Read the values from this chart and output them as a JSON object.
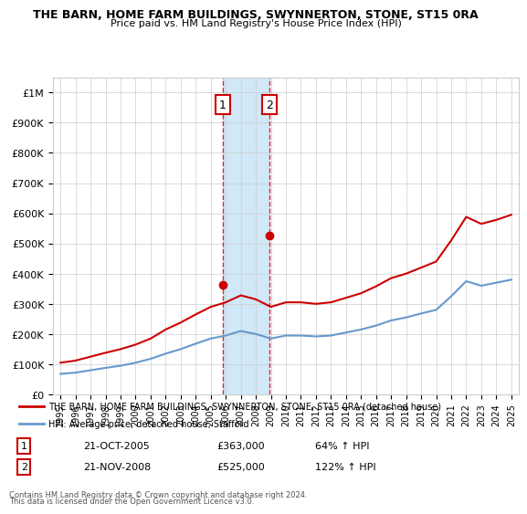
{
  "title": "THE BARN, HOME FARM BUILDINGS, SWYNNERTON, STONE, ST15 0RA",
  "subtitle": "Price paid vs. HM Land Registry's House Price Index (HPI)",
  "ylabel_ticks": [
    "£0",
    "£100K",
    "£200K",
    "£300K",
    "£400K",
    "£500K",
    "£600K",
    "£700K",
    "£800K",
    "£900K",
    "£1M"
  ],
  "ytick_values": [
    0,
    100000,
    200000,
    300000,
    400000,
    500000,
    600000,
    700000,
    800000,
    900000,
    1000000
  ],
  "xlim": [
    1994.5,
    2025.5
  ],
  "ylim": [
    0,
    1050000
  ],
  "purchase1_year": 2005.8,
  "purchase1_value": 363000,
  "purchase1_label": "1",
  "purchase1_date": "21-OCT-2005",
  "purchase1_price": "£363,000",
  "purchase1_hpi": "64% ↑ HPI",
  "purchase2_year": 2008.9,
  "purchase2_value": 525000,
  "purchase2_label": "2",
  "purchase2_date": "21-NOV-2008",
  "purchase2_price": "£525,000",
  "purchase2_hpi": "122% ↑ HPI",
  "shade_color": "#d0e8f8",
  "red_line_color": "#cc0000",
  "blue_line_color": "#6699cc",
  "marker_box_color": "#cc0000",
  "legend_label_red": "THE BARN, HOME FARM BUILDINGS, SWYNNERTON, STONE, ST15 0RA (detached house)",
  "legend_label_blue": "HPI: Average price, detached house, Stafford",
  "footer1": "Contains HM Land Registry data © Crown copyright and database right 2024.",
  "footer2": "This data is licensed under the Open Government Licence v3.0.",
  "hpi_years": [
    1995,
    1996,
    1997,
    1998,
    1999,
    2000,
    2001,
    2002,
    2003,
    2004,
    2005,
    2006,
    2007,
    2008,
    2009,
    2010,
    2011,
    2012,
    2013,
    2014,
    2015,
    2016,
    2017,
    2018,
    2019,
    2020,
    2021,
    2022,
    2023,
    2024,
    2025
  ],
  "hpi_values": [
    68000,
    72000,
    80000,
    88000,
    95000,
    105000,
    118000,
    135000,
    150000,
    168000,
    185000,
    195000,
    210000,
    200000,
    185000,
    195000,
    195000,
    192000,
    195000,
    205000,
    215000,
    228000,
    245000,
    255000,
    268000,
    280000,
    325000,
    375000,
    360000,
    370000,
    380000
  ],
  "red_years": [
    1995,
    1996,
    1997,
    1998,
    1999,
    2000,
    2001,
    2002,
    2003,
    2004,
    2005,
    2006,
    2007,
    2008,
    2009,
    2010,
    2011,
    2012,
    2013,
    2014,
    2015,
    2016,
    2017,
    2018,
    2019,
    2020,
    2021,
    2022,
    2023,
    2024,
    2025
  ],
  "red_values": [
    105000,
    112000,
    125000,
    138000,
    150000,
    165000,
    185000,
    215000,
    238000,
    265000,
    290000,
    305000,
    328000,
    315000,
    290000,
    305000,
    305000,
    300000,
    305000,
    320000,
    335000,
    358000,
    385000,
    400000,
    420000,
    440000,
    510000,
    588000,
    565000,
    578000,
    595000
  ]
}
